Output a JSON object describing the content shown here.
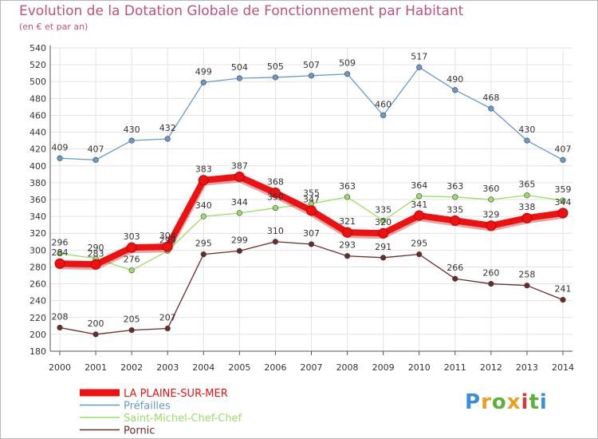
{
  "header": {
    "title": "Evolution de la Dotation Globale de Fonctionnement par Habitant",
    "subtitle": "(en € et par an)"
  },
  "logo": {
    "text": "Proxiti"
  },
  "chart_data": {
    "type": "line",
    "title": "Evolution de la Dotation Globale de Fonctionnement par Habitant",
    "subtitle": "(en € et par an)",
    "xlabel": "",
    "ylabel": "",
    "x": [
      2000,
      2001,
      2002,
      2003,
      2004,
      2005,
      2006,
      2007,
      2008,
      2009,
      2010,
      2011,
      2012,
      2013,
      2014
    ],
    "ylim": [
      180,
      540
    ],
    "yticks": [
      180,
      200,
      220,
      240,
      260,
      280,
      300,
      320,
      340,
      360,
      380,
      400,
      420,
      440,
      460,
      480,
      500,
      520,
      540
    ],
    "grid": true,
    "legend_position": "bottom-left",
    "series": [
      {
        "name": "LA PLAINE-SUR-MER",
        "color": "#ee1111",
        "values": [
          284,
          283,
          303,
          304,
          383,
          387,
          368,
          347,
          321,
          320,
          341,
          335,
          329,
          338,
          344
        ]
      },
      {
        "name": "Préfailles",
        "color": "#6699cc",
        "values": [
          409,
          407,
          430,
          432,
          499,
          504,
          505,
          507,
          509,
          460,
          517,
          490,
          468,
          430,
          407
        ]
      },
      {
        "name": "Saint-Michel-Chef-Chef",
        "color": "#99dd66",
        "values": [
          296,
          290,
          276,
          299,
          340,
          344,
          350,
          355,
          363,
          335,
          364,
          363,
          360,
          365,
          359
        ]
      },
      {
        "name": "Pornic",
        "color": "#6b2a2a",
        "values": [
          208,
          200,
          205,
          207,
          295,
          299,
          310,
          307,
          293,
          291,
          295,
          266,
          260,
          258,
          241
        ]
      }
    ]
  }
}
